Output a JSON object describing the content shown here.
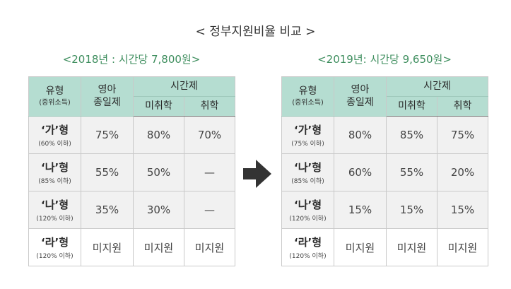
{
  "title": "< 정부지원비율 비교 >",
  "left": {
    "subtitle": "<2018년 : 시간당 7,800원>",
    "header": {
      "type_main": "유형",
      "type_sub": "(중위소득)",
      "fullday_line1": "영아",
      "fullday_line2": "종일제",
      "parttime": "시간제",
      "not_enrolled": "미취학",
      "enrolled": "취학"
    },
    "rows": [
      {
        "type": "‘가’형",
        "income": "(60% 이하)",
        "fullday": "75%",
        "not_enrolled": "80%",
        "enrolled": "70%"
      },
      {
        "type": "‘나’형",
        "income": "(85% 이하)",
        "fullday": "55%",
        "not_enrolled": "50%",
        "enrolled": "—"
      },
      {
        "type": "‘나’형",
        "income": "(120% 이하)",
        "fullday": "35%",
        "not_enrolled": "30%",
        "enrolled": "—"
      },
      {
        "type": "‘라’형",
        "income": "(120% 이하)",
        "fullday": "미지원",
        "not_enrolled": "미지원",
        "enrolled": "미지원"
      }
    ]
  },
  "right": {
    "subtitle": "<2019년: 시간당 9,650원>",
    "header": {
      "type_main": "유형",
      "type_sub": "(중위소득)",
      "fullday_line1": "영아",
      "fullday_line2": "종일제",
      "parttime": "시간제",
      "not_enrolled": "미취학",
      "enrolled": "취학"
    },
    "rows": [
      {
        "type": "‘가’형",
        "income": "(75% 이하)",
        "fullday": "80%",
        "not_enrolled": "85%",
        "enrolled": "75%"
      },
      {
        "type": "‘나’형",
        "income": "(85% 이하)",
        "fullday": "60%",
        "not_enrolled": "55%",
        "enrolled": "20%"
      },
      {
        "type": "‘나’형",
        "income": "(120% 이하)",
        "fullday": "15%",
        "not_enrolled": "15%",
        "enrolled": "15%"
      },
      {
        "type": "‘라’형",
        "income": "(120% 이하)",
        "fullday": "미지원",
        "not_enrolled": "미지원",
        "enrolled": "미지원"
      }
    ]
  },
  "colors": {
    "header_bg": "#b5ddd1",
    "subtitle": "#3e8e5e",
    "row_bg": "#f1f1f1",
    "arrow": "#333333"
  },
  "icons": {
    "arrow": "arrow-right-icon"
  }
}
